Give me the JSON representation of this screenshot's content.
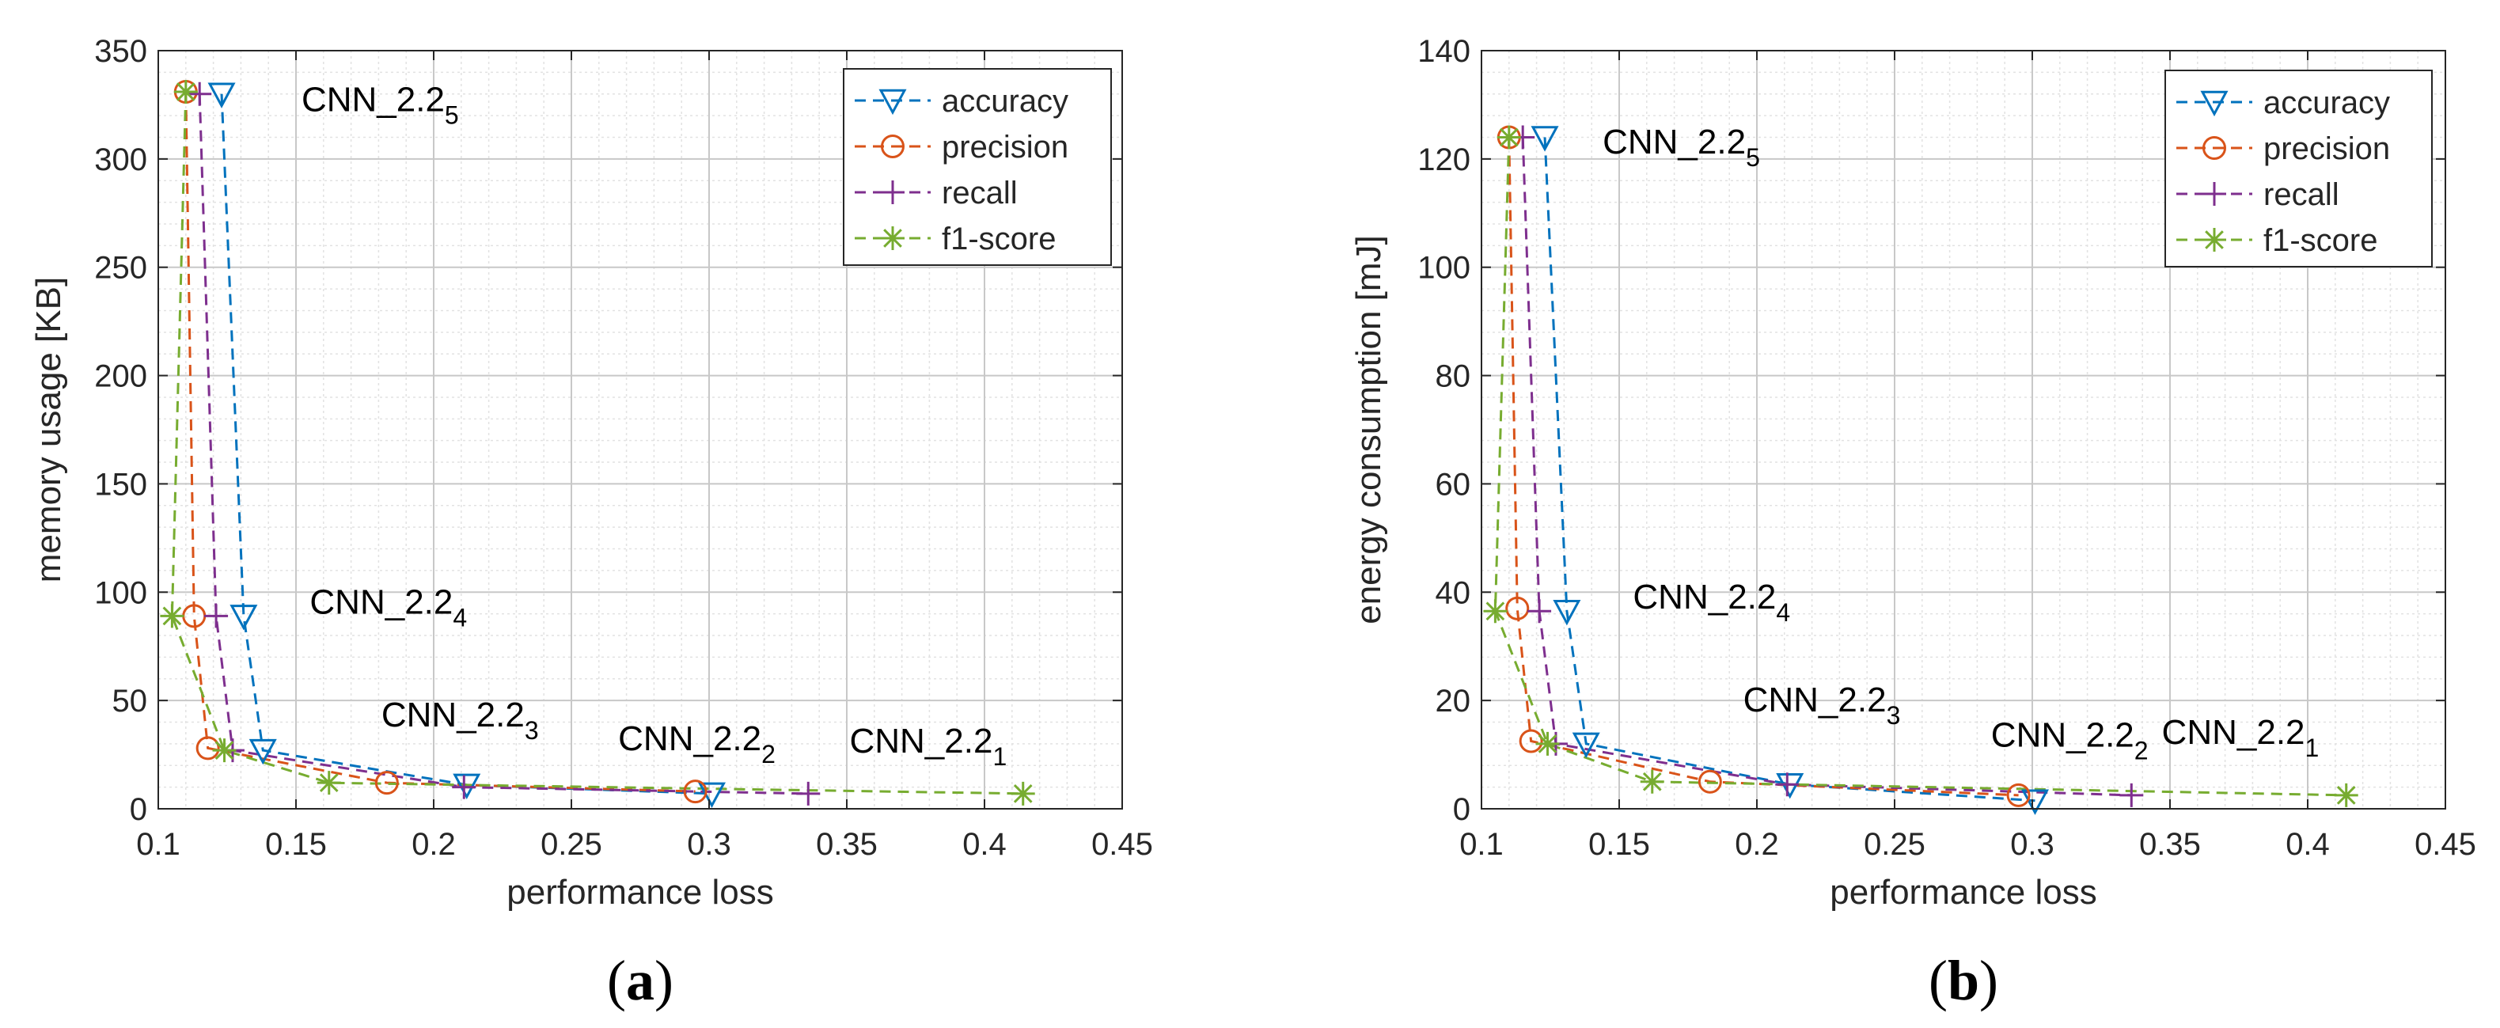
{
  "colors": {
    "accuracy": "#0072BD",
    "precision": "#D95319",
    "recall": "#7E2F8E",
    "f1_score": "#77AC30",
    "grid_major": "#c8c8c8",
    "grid_minor": "#e2e2e2",
    "axis": "#262626"
  },
  "chart_data": [
    {
      "type": "line",
      "panel": "a",
      "caption": "(a)",
      "caption_parts": {
        "open": "(",
        "letter": "a",
        "close": ")"
      },
      "xlabel": "performance loss",
      "ylabel": "memory usage [KB]",
      "xlim": [
        0.1,
        0.45
      ],
      "ylim": [
        0,
        350
      ],
      "xticks": [
        0.1,
        0.15,
        0.2,
        0.25,
        0.3,
        0.35,
        0.4,
        0.45
      ],
      "xtick_labels": [
        "0.1",
        "0.15",
        "0.2",
        "0.25",
        "0.3",
        "0.35",
        "0.4",
        "0.45"
      ],
      "yticks": [
        0,
        50,
        100,
        150,
        200,
        250,
        300,
        350
      ],
      "ytick_labels": [
        "0",
        "50",
        "100",
        "150",
        "200",
        "250",
        "300",
        "350"
      ],
      "grid": true,
      "legend_position": "top-right",
      "series": [
        {
          "name": "accuracy",
          "key": "accuracy",
          "marker": "triangle-down",
          "points": [
            [
              0.123,
              330
            ],
            [
              0.131,
              89
            ],
            [
              0.138,
              27
            ],
            [
              0.212,
              11
            ],
            [
              0.301,
              7
            ]
          ]
        },
        {
          "name": "precision",
          "key": "precision",
          "marker": "circle",
          "points": [
            [
              0.11,
              331
            ],
            [
              0.113,
              89
            ],
            [
              0.118,
              28
            ],
            [
              0.183,
              12
            ],
            [
              0.295,
              8
            ]
          ]
        },
        {
          "name": "recall",
          "key": "recall",
          "marker": "plus",
          "points": [
            [
              0.115,
              330
            ],
            [
              0.121,
              89
            ],
            [
              0.127,
              27
            ],
            [
              0.211,
              10
            ],
            [
              0.336,
              7
            ]
          ]
        },
        {
          "name": "f1-score",
          "key": "f1_score",
          "marker": "asterisk",
          "points": [
            [
              0.11,
              331
            ],
            [
              0.105,
              89
            ],
            [
              0.124,
              27
            ],
            [
              0.162,
              12
            ],
            [
              0.414,
              7
            ]
          ]
        }
      ],
      "annotations": [
        {
          "base": "CNN_2.2",
          "sub": "5",
          "x": 0.152,
          "y": 322
        },
        {
          "base": "CNN_2.2",
          "sub": "4",
          "x": 0.155,
          "y": 90
        },
        {
          "base": "CNN_2.2",
          "sub": "3",
          "x": 0.181,
          "y": 38
        },
        {
          "base": "CNN_2.2",
          "sub": "2",
          "x": 0.267,
          "y": 27
        },
        {
          "base": "CNN_2.2",
          "sub": "1",
          "x": 0.351,
          "y": 26
        }
      ]
    },
    {
      "type": "line",
      "panel": "b",
      "caption": "(b)",
      "caption_parts": {
        "open": "(",
        "letter": "b",
        "close": ")"
      },
      "xlabel": "performance loss",
      "ylabel": "energy consumption [mJ]",
      "xlim": [
        0.1,
        0.45
      ],
      "ylim": [
        0,
        140
      ],
      "xticks": [
        0.1,
        0.15,
        0.2,
        0.25,
        0.3,
        0.35,
        0.4,
        0.45
      ],
      "xtick_labels": [
        "0.1",
        "0.15",
        "0.2",
        "0.25",
        "0.3",
        "0.35",
        "0.4",
        "0.45"
      ],
      "yticks": [
        0,
        20,
        40,
        60,
        80,
        100,
        120,
        140
      ],
      "ytick_labels": [
        "0",
        "20",
        "40",
        "60",
        "80",
        "100",
        "120",
        "140"
      ],
      "grid": true,
      "legend_position": "top-right",
      "series": [
        {
          "name": "accuracy",
          "key": "accuracy",
          "marker": "triangle-down",
          "points": [
            [
              0.123,
              124
            ],
            [
              0.131,
              36.5
            ],
            [
              0.138,
              12
            ],
            [
              0.212,
              4.5
            ],
            [
              0.301,
              1.5
            ]
          ]
        },
        {
          "name": "precision",
          "key": "precision",
          "marker": "circle",
          "points": [
            [
              0.11,
              124
            ],
            [
              0.113,
              37
            ],
            [
              0.118,
              12.5
            ],
            [
              0.183,
              5
            ],
            [
              0.295,
              2.5
            ]
          ]
        },
        {
          "name": "recall",
          "key": "recall",
          "marker": "plus",
          "points": [
            [
              0.115,
              124
            ],
            [
              0.121,
              36.5
            ],
            [
              0.127,
              12
            ],
            [
              0.211,
              4.5
            ],
            [
              0.336,
              2.5
            ]
          ]
        },
        {
          "name": "f1-score",
          "key": "f1_score",
          "marker": "asterisk",
          "points": [
            [
              0.11,
              124
            ],
            [
              0.105,
              36.5
            ],
            [
              0.124,
              12
            ],
            [
              0.162,
              5
            ],
            [
              0.414,
              2.5
            ]
          ]
        }
      ],
      "annotations": [
        {
          "base": "CNN_2.2",
          "sub": "5",
          "x": 0.144,
          "y": 121
        },
        {
          "base": "CNN_2.2",
          "sub": "4",
          "x": 0.155,
          "y": 37
        },
        {
          "base": "CNN_2.2",
          "sub": "3",
          "x": 0.195,
          "y": 18
        },
        {
          "base": "CNN_2.2",
          "sub": "2",
          "x": 0.285,
          "y": 11.5
        },
        {
          "base": "CNN_2.2",
          "sub": "1",
          "x": 0.347,
          "y": 12
        }
      ]
    }
  ]
}
